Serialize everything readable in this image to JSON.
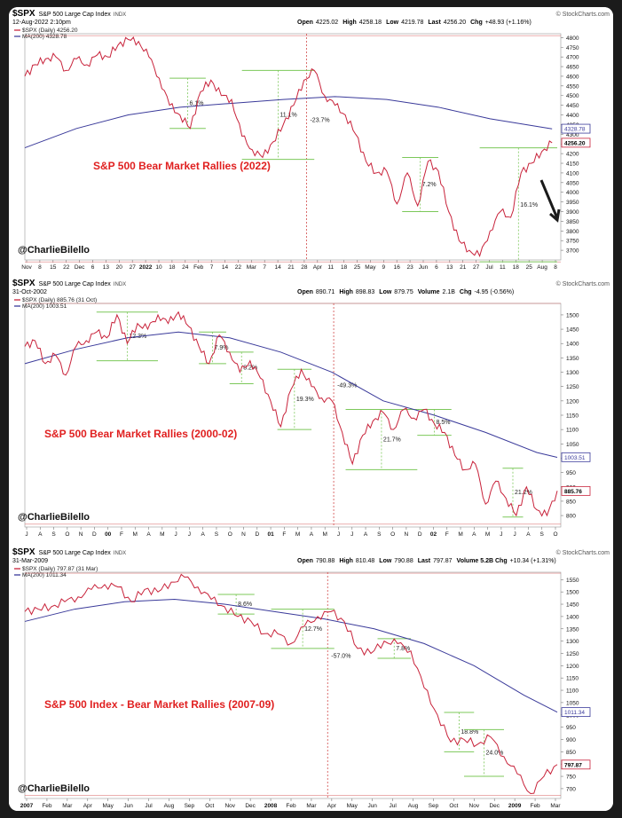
{
  "watermark": "© StockCharts.com",
  "colors": {
    "price": "#c8223a",
    "ma": "#3a3a9a",
    "level": "#7cc85a",
    "divider": "#d24a4a",
    "rallyBox": "#d0d0d0",
    "title": "#e02020",
    "arrow": "#1a1a1a"
  },
  "chart_data": [
    {
      "type": "line",
      "symbol": "$SPX",
      "name": "S&P 500 Large Cap Index",
      "exchange": "INDX",
      "date": "12-Aug-2022 2:10pm",
      "legend_price": "$SPX (Daily) 4256.20",
      "legend_ma": "MA(200) 4328.78",
      "quote": {
        "open_label": "Open",
        "open": "4225.02",
        "high_label": "High",
        "high": "4258.18",
        "low_label": "Low",
        "low": "4219.78",
        "last_label": "Last",
        "last": "4256.20",
        "chg_label": "Chg",
        "chg": "+48.93 (+1.16%)"
      },
      "overlay_title": "S&P 500 Bear Market Rallies (2022)",
      "author": "@CharlieBilello",
      "last_value": "4256.20",
      "ma_value": "4328.78",
      "ylim": [
        3650,
        4820
      ],
      "yticks": [
        3700,
        3750,
        3800,
        3850,
        3900,
        3950,
        4000,
        4050,
        4100,
        4150,
        4200,
        4250,
        4300,
        4350,
        4400,
        4450,
        4500,
        4550,
        4600,
        4650,
        4700,
        4750,
        4800
      ],
      "xtick_labels": [
        "Nov",
        "8",
        "15",
        "22",
        "Dec",
        "6",
        "13",
        "20",
        "27",
        "2022",
        "10",
        "18",
        "24",
        "Feb",
        "7",
        "14",
        "22",
        "Mar",
        "7",
        "14",
        "21",
        "28",
        "Apr",
        "11",
        "18",
        "25",
        "May",
        "9",
        "16",
        "23",
        "Jun",
        "6",
        "13",
        "21",
        "27",
        "Jul",
        "11",
        "18",
        "25",
        "Aug",
        "8"
      ],
      "series": [
        {
          "name": "$SPX (Daily)",
          "x": [
            0,
            4,
            8,
            12,
            16,
            20,
            24,
            28,
            32,
            36,
            40,
            44,
            48,
            52,
            56,
            60,
            64,
            68,
            72,
            76,
            80,
            84,
            88,
            92,
            96,
            100,
            104,
            108,
            112,
            116,
            120,
            124,
            128,
            132,
            136,
            140,
            144,
            148,
            152,
            156,
            160,
            164,
            168,
            172,
            176,
            180,
            184,
            188,
            192,
            196,
            200,
            204
          ],
          "values": [
            4600,
            4660,
            4690,
            4700,
            4630,
            4690,
            4660,
            4710,
            4700,
            4760,
            4790,
            4780,
            4700,
            4590,
            4450,
            4400,
            4330,
            4520,
            4580,
            4500,
            4480,
            4290,
            4220,
            4180,
            4260,
            4350,
            4450,
            4580,
            4630,
            4500,
            4450,
            4400,
            4300,
            4160,
            4100,
            4110,
            3940,
            4100,
            3930,
            4160,
            4110,
            3900,
            3750,
            3700,
            3670,
            3800,
            3900,
            3870,
            4100,
            4150,
            4210,
            4256
          ]
        },
        {
          "name": "MA(200)",
          "x": [
            0,
            20,
            40,
            60,
            80,
            100,
            120,
            140,
            160,
            180,
            204
          ],
          "values": [
            4230,
            4330,
            4400,
            4440,
            4460,
            4480,
            4495,
            4480,
            4440,
            4380,
            4328
          ]
        }
      ],
      "rallies": [
        {
          "label": "6.1%",
          "x0": 56,
          "x1": 70,
          "low": 4330,
          "high": 4590
        },
        {
          "label": "11.1%",
          "x0": 84,
          "x1": 112,
          "low": 4170,
          "high": 4630
        },
        {
          "label": "7.2%",
          "x0": 146,
          "x1": 160,
          "low": 3900,
          "high": 4180
        },
        {
          "label": "16.1%",
          "x0": 176,
          "x1": 206,
          "low": 3640,
          "high": 4230
        }
      ],
      "decline": {
        "label": "-23.7%",
        "x": 109,
        "high": 4810,
        "low": 3640
      },
      "arrow": true
    },
    {
      "type": "line",
      "symbol": "$SPX",
      "name": "S&P 500 Large Cap Index",
      "exchange": "INDX",
      "date": "31-Oct-2002",
      "legend_price": "$SPX (Daily) 885.76 (31 Oct)",
      "legend_ma": "MA(200) 1003.51",
      "quote": {
        "open_label": "Open",
        "open": "890.71",
        "high_label": "High",
        "high": "898.83",
        "low_label": "Low",
        "low": "879.75",
        "last_label": "Volume",
        "last": "2.1B",
        "chg_label": "Chg",
        "chg": "-4.95 (-0.56%)"
      },
      "overlay_title": "S&P 500 Bear Market Rallies (2000-02)",
      "author": "@CharlieBilello",
      "last_value": "885.76",
      "ma_value": "1003.51",
      "ylim": [
        760,
        1540
      ],
      "yticks": [
        800,
        850,
        900,
        950,
        1000,
        1050,
        1100,
        1150,
        1200,
        1250,
        1300,
        1350,
        1400,
        1450,
        1500
      ],
      "xtick_labels": [
        "J",
        "A",
        "S",
        "O",
        "N",
        "D",
        "00",
        "F",
        "M",
        "A",
        "M",
        "J",
        "J",
        "A",
        "S",
        "O",
        "N",
        "D",
        "01",
        "F",
        "M",
        "A",
        "M",
        "J",
        "J",
        "A",
        "S",
        "O",
        "N",
        "D",
        "02",
        "F",
        "M",
        "A",
        "M",
        "J",
        "J",
        "A",
        "S",
        "O"
      ],
      "series": [
        {
          "name": "$SPX (Daily)",
          "x": [
            0,
            6,
            12,
            18,
            24,
            30,
            36,
            42,
            48,
            54,
            60,
            66,
            72,
            78,
            84,
            90,
            96,
            102,
            108,
            114,
            120,
            126,
            132,
            138,
            144,
            150,
            156,
            162,
            168,
            174,
            180,
            186,
            192,
            198,
            204,
            210,
            216,
            222,
            228,
            234,
            240,
            246,
            252,
            258,
            264,
            270,
            276,
            282,
            288,
            294,
            300,
            306,
            312
          ],
          "values": [
            1390,
            1410,
            1330,
            1360,
            1290,
            1390,
            1410,
            1440,
            1420,
            1500,
            1400,
            1470,
            1450,
            1500,
            1470,
            1510,
            1460,
            1390,
            1330,
            1430,
            1370,
            1300,
            1340,
            1280,
            1200,
            1110,
            1240,
            1310,
            1250,
            1210,
            1200,
            1090,
            980,
            1080,
            1130,
            1160,
            1100,
            1170,
            1140,
            1170,
            1120,
            1090,
            1010,
            960,
            980,
            840,
            920,
            860,
            800,
            900,
            820,
            800,
            886
          ]
        },
        {
          "name": "MA(200)",
          "x": [
            0,
            30,
            60,
            90,
            120,
            150,
            180,
            210,
            240,
            270,
            300,
            312
          ],
          "values": [
            1330,
            1380,
            1420,
            1440,
            1420,
            1370,
            1300,
            1200,
            1150,
            1090,
            1020,
            1003
          ]
        }
      ],
      "rallies": [
        {
          "label": "12.3%",
          "x0": 42,
          "x1": 78,
          "low": 1340,
          "high": 1510
        },
        {
          "label": "7.9%",
          "x0": 102,
          "x1": 118,
          "low": 1330,
          "high": 1440
        },
        {
          "label": "8.2%",
          "x0": 120,
          "x1": 134,
          "low": 1260,
          "high": 1370
        },
        {
          "label": "19.3%",
          "x0": 148,
          "x1": 168,
          "low": 1100,
          "high": 1310
        },
        {
          "label": "21.7%",
          "x0": 188,
          "x1": 230,
          "low": 960,
          "high": 1170
        },
        {
          "label": "8.5%",
          "x0": 230,
          "x1": 250,
          "low": 1080,
          "high": 1170
        },
        {
          "label": "21.2%",
          "x0": 280,
          "x1": 292,
          "low": 795,
          "high": 965
        }
      ],
      "decline": {
        "label": "-49.3%",
        "x": 181,
        "high": 1540,
        "low": 770
      },
      "arrow": false
    },
    {
      "type": "line",
      "symbol": "$SPX",
      "name": "S&P 500 Large Cap Index",
      "exchange": "INDX",
      "date": "31-Mar-2009",
      "legend_price": "$SPX (Daily) 797.87 (31 Mar)",
      "legend_ma": "MA(200) 1011.34",
      "quote": {
        "open_label": "Open",
        "open": "790.88",
        "high_label": "High",
        "high": "810.48",
        "low_label": "Low",
        "low": "790.88",
        "last_label": "Last",
        "last": "797.87",
        "chg_label": "Volume 5.2B Chg",
        "chg": "+10.34 (+1.31%)"
      },
      "overlay_title": "S&P 500 Index - Bear Market Rallies (2007-09)",
      "author": "@CharlieBilello",
      "last_value": "797.87",
      "ma_value": "1011.34",
      "ylim": [
        660,
        1580
      ],
      "yticks": [
        700,
        750,
        800,
        850,
        900,
        950,
        1000,
        1050,
        1100,
        1150,
        1200,
        1250,
        1300,
        1350,
        1400,
        1450,
        1500,
        1550
      ],
      "xtick_labels": [
        "2007",
        "Feb",
        "Mar",
        "Apr",
        "May",
        "Jun",
        "Jul",
        "Aug",
        "Sep",
        "Oct",
        "Nov",
        "Dec",
        "2008",
        "Feb",
        "Mar",
        "Apr",
        "May",
        "Jun",
        "Jul",
        "Aug",
        "Sep",
        "Oct",
        "Nov",
        "Dec",
        "2009",
        "Feb",
        "Mar"
      ],
      "series": [
        {
          "name": "$SPX (Daily)",
          "x": [
            0,
            8,
            16,
            24,
            32,
            40,
            48,
            56,
            64,
            72,
            80,
            88,
            96,
            104,
            112,
            120,
            128,
            136,
            144,
            152,
            160,
            168,
            176,
            184,
            192,
            200,
            208,
            216,
            224,
            232,
            240,
            248,
            256,
            264,
            272,
            280,
            288,
            296,
            304,
            312,
            320
          ],
          "values": [
            1420,
            1430,
            1440,
            1460,
            1480,
            1510,
            1530,
            1520,
            1460,
            1510,
            1500,
            1540,
            1560,
            1520,
            1470,
            1440,
            1400,
            1380,
            1330,
            1330,
            1290,
            1360,
            1400,
            1420,
            1380,
            1270,
            1250,
            1300,
            1290,
            1260,
            1110,
            1000,
            890,
            900,
            880,
            910,
            830,
            760,
            680,
            750,
            798
          ]
        },
        {
          "name": "MA(200)",
          "x": [
            0,
            30,
            60,
            90,
            120,
            150,
            180,
            210,
            240,
            270,
            300,
            320
          ],
          "values": [
            1380,
            1430,
            1460,
            1470,
            1450,
            1420,
            1390,
            1350,
            1290,
            1200,
            1080,
            1011
          ]
        }
      ],
      "rallies": [
        {
          "label": "8.6%",
          "x0": 116,
          "x1": 138,
          "low": 1410,
          "high": 1490
        },
        {
          "label": "12.7%",
          "x0": 148,
          "x1": 186,
          "low": 1270,
          "high": 1430
        },
        {
          "label": "7.8%",
          "x0": 212,
          "x1": 232,
          "low": 1230,
          "high": 1310
        },
        {
          "label": "18.8%",
          "x0": 252,
          "x1": 270,
          "low": 850,
          "high": 1010
        },
        {
          "label": "24.0%",
          "x0": 264,
          "x1": 288,
          "low": 750,
          "high": 940
        }
      ],
      "decline": {
        "label": "-57.0%",
        "x": 182,
        "high": 1576,
        "low": 672
      },
      "arrow": false
    }
  ]
}
